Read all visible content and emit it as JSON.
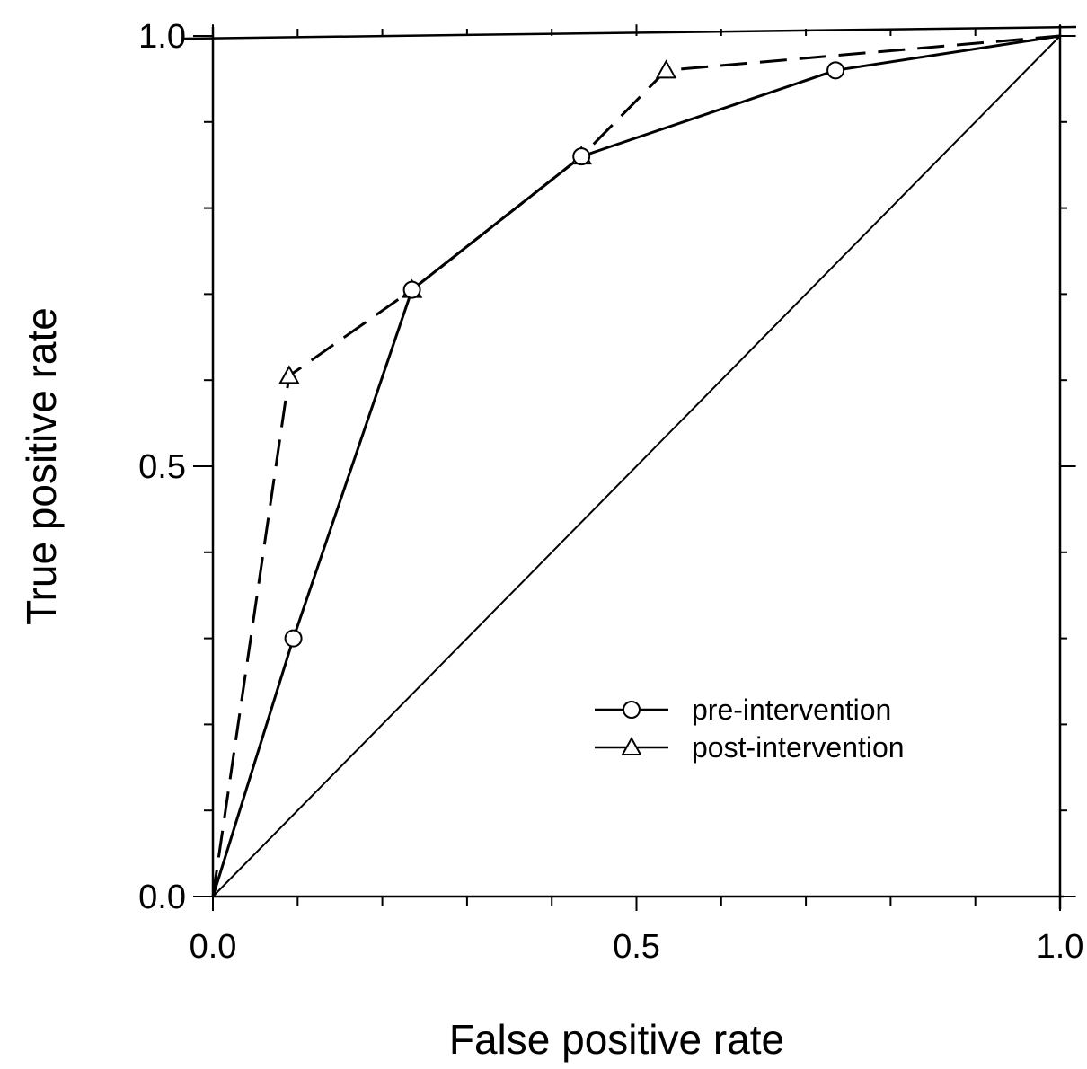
{
  "chart_data": {
    "type": "line",
    "title": "",
    "xlabel": "False positive rate",
    "ylabel": "True positive rate",
    "xlim": [
      0.0,
      1.0
    ],
    "ylim": [
      0.0,
      1.0
    ],
    "x_ticks": [
      0.0,
      0.5,
      1.0
    ],
    "y_ticks": [
      0.0,
      0.5,
      1.0
    ],
    "x_tick_labels": [
      "0.0",
      "0.5",
      "1.0"
    ],
    "y_tick_labels": [
      "0.0",
      "0.5",
      "1.0"
    ],
    "x_minor_step": 0.1,
    "y_minor_step": 0.1,
    "grid": false,
    "legend_position": "bottom-right",
    "series": [
      {
        "name": "pre-intervention",
        "marker": "circle",
        "line_style": "solid",
        "x": [
          0.0,
          0.095,
          0.235,
          0.435,
          0.735,
          1.0
        ],
        "y": [
          0.0,
          0.3,
          0.705,
          0.86,
          0.96,
          1.0
        ]
      },
      {
        "name": "post-intervention",
        "marker": "triangle",
        "line_style": "dashed",
        "x": [
          0.0,
          0.09,
          0.235,
          0.435,
          0.535,
          1.0
        ],
        "y": [
          0.0,
          0.605,
          0.705,
          0.86,
          0.96,
          1.0
        ]
      }
    ],
    "reference_line": {
      "style": "diagonal",
      "x": [
        0.0,
        1.0
      ],
      "y": [
        0.0,
        1.0
      ]
    },
    "colors": {
      "line": "#000000",
      "background": "#ffffff"
    }
  }
}
